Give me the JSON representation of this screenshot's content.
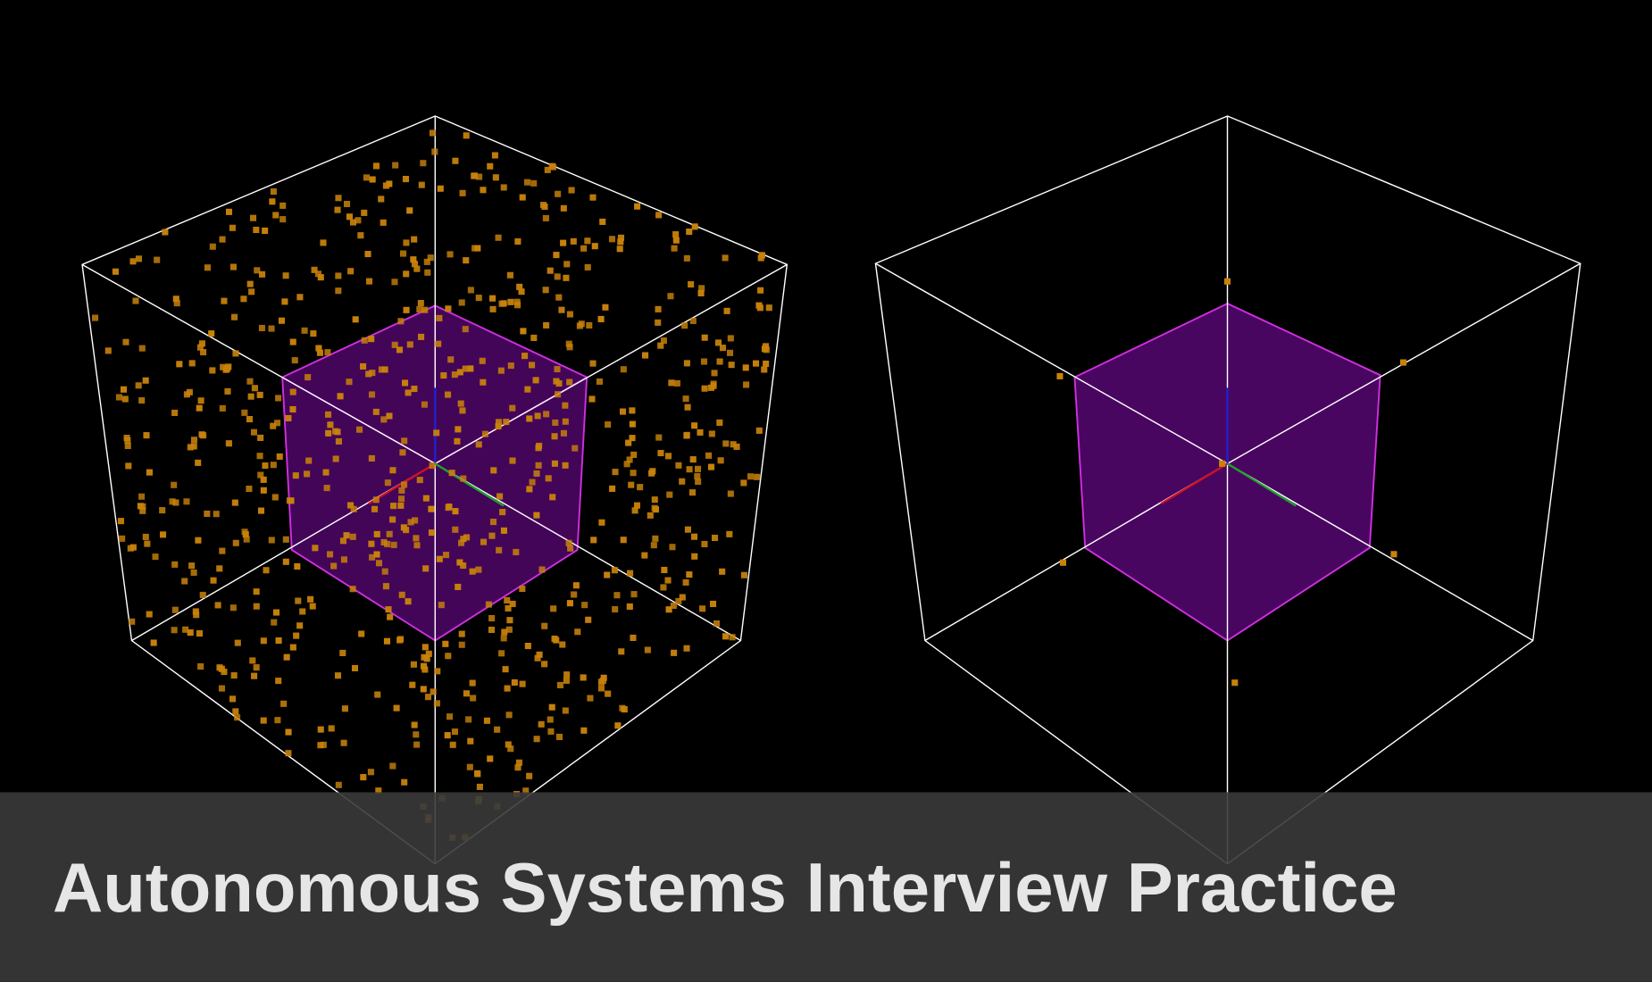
{
  "caption": {
    "title": "Autonomous Systems Interview Practice"
  }
}
